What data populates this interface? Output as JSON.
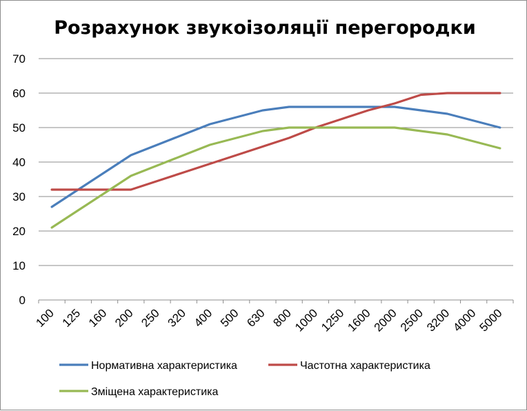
{
  "chart_data": {
    "type": "line",
    "title": "Розрахунок звукоізоляції перегородки",
    "xlabel": "",
    "ylabel": "",
    "categories": [
      "100",
      "125",
      "160",
      "200",
      "250",
      "320",
      "400",
      "500",
      "630",
      "800",
      "1000",
      "1250",
      "1600",
      "2000",
      "2500",
      "3200",
      "4000",
      "5000"
    ],
    "ylim": [
      0,
      70
    ],
    "yticks": [
      0,
      10,
      20,
      30,
      40,
      50,
      60,
      70
    ],
    "grid": true,
    "legend_position": "bottom",
    "series": [
      {
        "name": "Нормативна характеристика",
        "color": "#4a7ebb",
        "values": [
          27,
          32,
          37,
          42,
          45,
          48,
          51,
          53,
          55,
          56,
          56,
          56,
          56,
          56,
          55,
          54,
          52,
          50
        ]
      },
      {
        "name": "Частотна характеристика",
        "color": "#be4b48",
        "values": [
          32,
          32,
          32,
          32,
          34.5,
          37,
          39.5,
          42,
          44.5,
          47,
          50,
          52.5,
          55,
          57,
          59.5,
          60,
          60,
          60
        ]
      },
      {
        "name": "Зміщена характеристика",
        "color": "#98b954",
        "values": [
          21,
          26,
          31,
          36,
          39,
          42,
          45,
          47,
          49,
          50,
          50,
          50,
          50,
          50,
          49,
          48,
          46,
          44
        ]
      }
    ]
  }
}
